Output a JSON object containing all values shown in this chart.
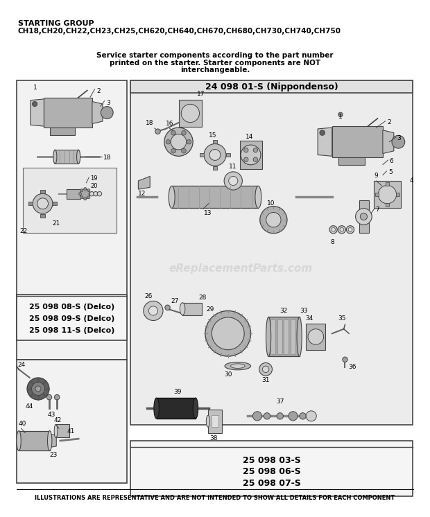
{
  "title_line1": "STARTING GROUP",
  "title_line2": "CH18,CH20,CH22,CH23,CH25,CH620,CH640,CH670,CH680,CH730,CH740,CH750",
  "service_note_1": "Service starter components according to the part number",
  "service_note_2": "printed on the starter. Starter components are NOT",
  "service_note_3": "interchangeable.",
  "nippondenso_label": "24 098 01-S (Nippondenso)",
  "delco_labels": [
    "25 098 08-S (Delco)",
    "25 098 09-S (Delco)",
    "25 098 11-S (Delco)"
  ],
  "bottom_labels": [
    "25 098 03-S",
    "25 098 06-S",
    "25 098 07-S"
  ],
  "footer": "ILLUSTRATIONS ARE REPRESENTATIVE AND ARE NOT INTENDED TO SHOW ALL DETAILS FOR EACH COMPONENT",
  "watermark": "eReplacementParts.com",
  "bg_color": "#ffffff",
  "light_gray": "#d8d8d8",
  "mid_gray": "#a0a0a0",
  "dark_gray": "#606060",
  "border_color": "#444444",
  "box_bg": "#f2f2f2",
  "nippon_bg": "#ececec"
}
